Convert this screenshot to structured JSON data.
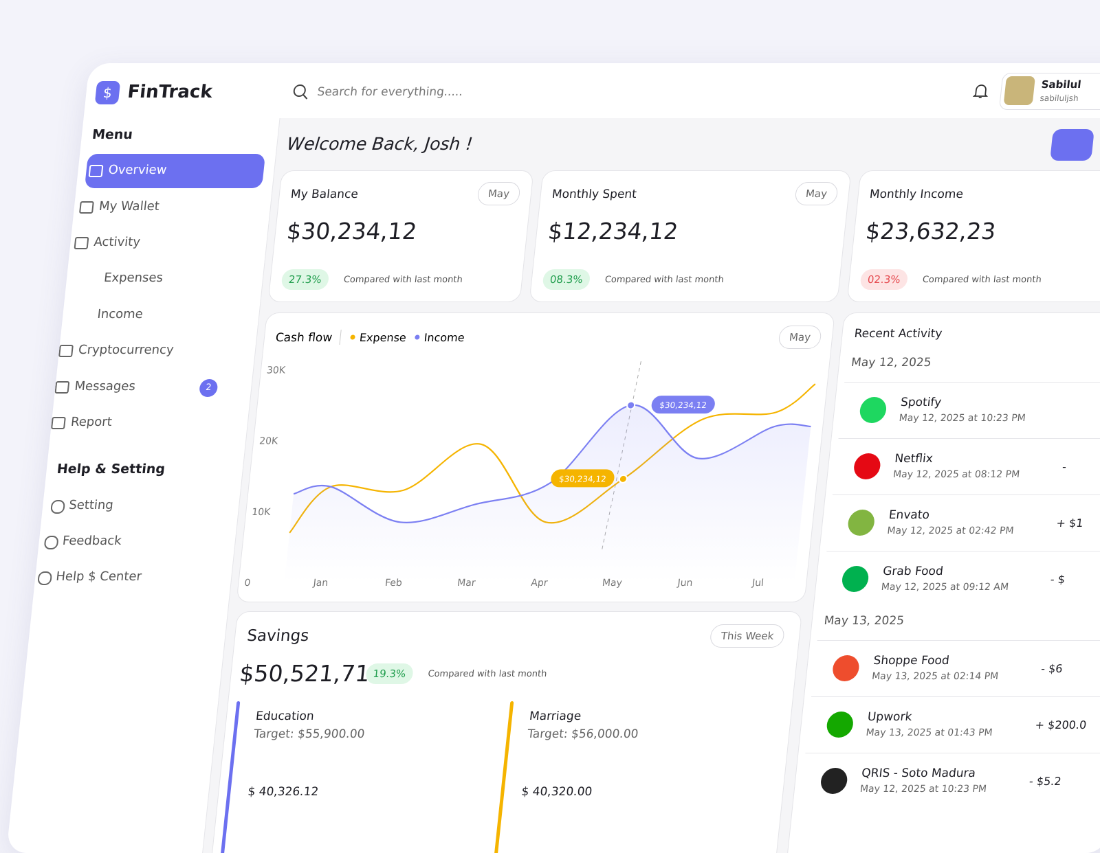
{
  "sidebar": {
    "logo": "FinTrack",
    "menu_title": "Menu",
    "menu": [
      "Overview",
      "My Wallet",
      "Activity",
      "Expenses",
      "Income",
      "Cryptocurrency",
      "Messages",
      "Report"
    ],
    "messages_badge": 2,
    "help_title": "Help & Setting",
    "help": [
      "Setting",
      "Feedback",
      "Help $ Center"
    ]
  },
  "header": {
    "search_placeholder": "Search for everything.....",
    "user_name": "Sabilul",
    "user_email": "sabiluljsh"
  },
  "welcome": "Welcome Back, Josh !",
  "cards": [
    {
      "title": "My Balance",
      "period": "May",
      "amount": "$30,234,12",
      "change": "27.3%",
      "badge_color": "green",
      "note": "Compared with last month"
    },
    {
      "title": "Monthly Spent",
      "period": "May",
      "amount": "$12,234,12",
      "change": "08.3%",
      "badge_color": "green",
      "note": "Compared with last month"
    },
    {
      "title": "Monthly Income",
      "amount": "$23,632,23",
      "change": "02.3%",
      "badge_color": "red",
      "note": "Compared with last month"
    }
  ],
  "chart_data": {
    "type": "line",
    "title": "Cash flow",
    "period": "May",
    "categories": [
      null,
      "Jan",
      "Feb",
      "Mar",
      "Apr",
      "May",
      "Jun",
      "Jul",
      null
    ],
    "series": [
      {
        "name": "Expense",
        "color": "#f5b400",
        "values": [
          7000,
          13500,
          13000,
          19500,
          8500,
          14600,
          23000,
          24000,
          28000
        ]
      },
      {
        "name": "Income",
        "color": "#7b7ff2",
        "values": [
          12500,
          13500,
          8500,
          11000,
          14000,
          25000,
          17500,
          22000,
          22000
        ]
      }
    ],
    "ylim": [
      0,
      31500
    ],
    "yticks": [
      0,
      {
        "value": 10000,
        "label": "10K"
      },
      {
        "value": 20000,
        "label": "20K"
      },
      {
        "value": 30000,
        "label": "30K"
      }
    ],
    "highlight_index": 5,
    "annotations": [
      "$30,234,12",
      "$30,234,12"
    ]
  },
  "savings": {
    "title": "Savings",
    "period": "This Week",
    "amount": "$50,521,71",
    "change": "19.3%",
    "note": "Compared with last month",
    "goals": [
      {
        "name": "Education",
        "target": "Target: $55,900.00",
        "saved": "$ 40,326.12",
        "color": "#6c70f0"
      },
      {
        "name": "Marriage",
        "target": "Target: $56,000.00",
        "saved": "$ 40,320.00",
        "color": "#f5b400"
      }
    ]
  },
  "recent_activity": {
    "title": "Recent Activity",
    "groups": [
      {
        "date": "May 12, 2025",
        "items": [
          {
            "name": "Spotify",
            "time": "May 12, 2025 at 10:23 PM",
            "icon_color": "#1ed760"
          },
          {
            "name": "Netflix",
            "time": "May 12, 2025 at 08:12 PM",
            "amount": "-",
            "icon_color": "#e50914"
          },
          {
            "name": "Envato",
            "time": "May 12, 2025 at 02:42 PM",
            "amount": "+ $1",
            "icon_color": "#82b541"
          },
          {
            "name": "Grab Food",
            "time": "May 12, 2025 at 09:12 AM",
            "amount": "- $",
            "icon_color": "#00b14f"
          }
        ]
      },
      {
        "date": "May 13, 2025",
        "items": [
          {
            "name": "Shoppe Food",
            "time": "May 13, 2025 at 02:14 PM",
            "amount": "- $6",
            "icon_color": "#ee4d2d"
          },
          {
            "name": "Upwork",
            "time": "May 13, 2025 at 01:43 PM",
            "amount": "+ $200.0",
            "icon_color": "#14a800"
          },
          {
            "name": "QRIS - Soto Madura",
            "time": "May 12, 2025 at 10:23 PM",
            "amount": "- $5.2",
            "icon_color": "#222222"
          }
        ]
      }
    ]
  }
}
